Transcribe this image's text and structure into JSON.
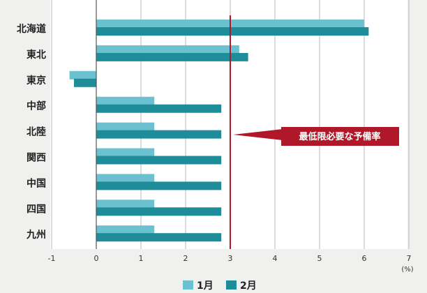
{
  "chart_data": {
    "type": "bar",
    "orientation": "horizontal",
    "categories": [
      "北海道",
      "東北",
      "東京",
      "中部",
      "北陸",
      "関西",
      "中国",
      "四国",
      "九州"
    ],
    "series": [
      {
        "name": "1月",
        "color": "#6cc1d0",
        "values": [
          6.0,
          3.2,
          -0.6,
          1.3,
          1.3,
          1.3,
          1.3,
          1.3,
          1.3
        ]
      },
      {
        "name": "2月",
        "color": "#1f8c99",
        "values": [
          6.1,
          3.4,
          -0.5,
          2.8,
          2.8,
          2.8,
          2.8,
          2.8,
          2.8
        ]
      }
    ],
    "xlim": [
      -1,
      7
    ],
    "xticks": [
      "-1",
      "0",
      "1",
      "2",
      "3",
      "4",
      "5",
      "6",
      "7"
    ],
    "unit_label": "(%)",
    "grid": true,
    "legend_position": "bottom",
    "reference_line": {
      "value": 3,
      "color": "#b0182a",
      "label": "最低限必要な予備率"
    }
  }
}
